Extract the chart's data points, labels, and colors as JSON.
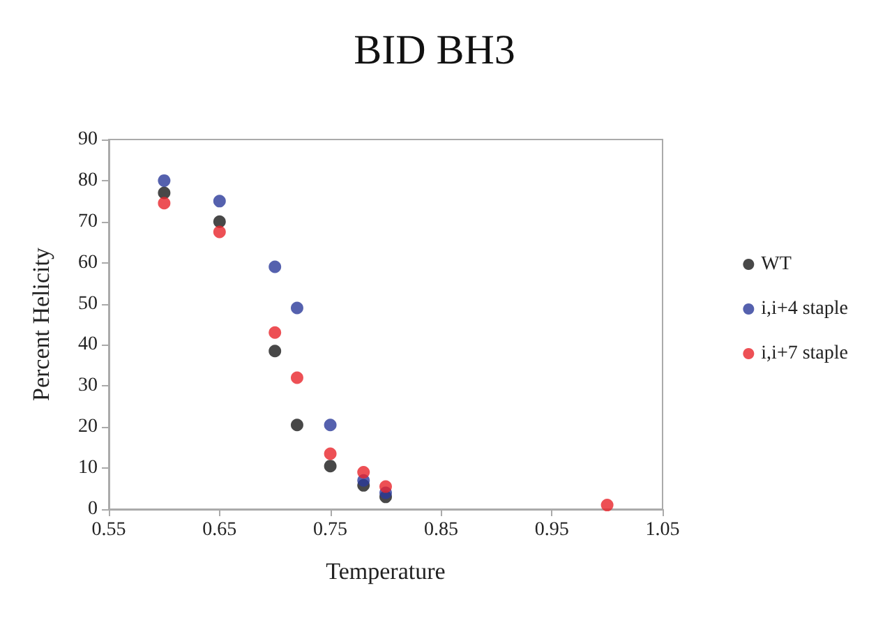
{
  "chart_data": {
    "type": "scatter",
    "title": "BID BH3",
    "xlabel": "Temperature",
    "ylabel": "Percent Helicity",
    "xlim": [
      0.55,
      1.05
    ],
    "xticks": [
      0.55,
      0.65,
      0.75,
      0.85,
      0.95,
      1.05
    ],
    "ylim": [
      0,
      90
    ],
    "yticks": [
      0,
      10,
      20,
      30,
      40,
      50,
      60,
      70,
      80,
      90
    ],
    "grid": false,
    "legend": "right",
    "marker": "circle",
    "series": [
      {
        "name": "WT",
        "color": "#1a1a1a",
        "x": [
          0.6,
          0.65,
          0.7,
          0.72,
          0.75,
          0.78,
          0.8
        ],
        "values": [
          77,
          70,
          38.5,
          20.5,
          10.5,
          5.8,
          3
        ]
      },
      {
        "name": "i,i+4 staple",
        "color": "#2b3a9a",
        "x": [
          0.6,
          0.65,
          0.7,
          0.72,
          0.75,
          0.78,
          0.8
        ],
        "values": [
          80,
          75,
          59,
          49,
          20.5,
          7,
          4
        ]
      },
      {
        "name": "i,i+7 staple",
        "color": "#e8242b",
        "x": [
          0.6,
          0.65,
          0.7,
          0.72,
          0.75,
          0.78,
          0.8,
          1.0
        ],
        "values": [
          74.5,
          67.5,
          43,
          32,
          13.5,
          9,
          5.5,
          1
        ]
      }
    ]
  }
}
